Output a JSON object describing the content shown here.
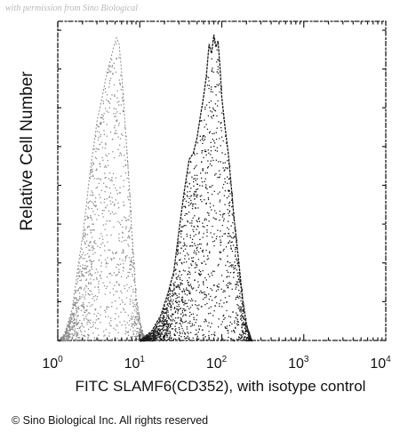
{
  "watermark": "with permission from Sino Biological",
  "copyright": "© Sino Biological Inc. All rights reserved",
  "chart_data": {
    "type": "area",
    "xlabel": "FITC SLAMF6(CD352), with isotype control",
    "ylabel": "Relative Cell Number",
    "xscale": "log",
    "xlim": [
      1,
      10000
    ],
    "ylim": [
      0,
      1
    ],
    "grid": false,
    "x_tick_labels": [
      {
        "value": 1,
        "base": "10",
        "exp": "0"
      },
      {
        "value": 10,
        "base": "10",
        "exp": "1"
      },
      {
        "value": 100,
        "base": "10",
        "exp": "2"
      },
      {
        "value": 1000,
        "base": "10",
        "exp": "3"
      },
      {
        "value": 10000,
        "base": "10",
        "exp": "4"
      }
    ],
    "series": [
      {
        "color": "#8a8a8a",
        "x": [
          1,
          1.2,
          1.5,
          1.8,
          2,
          2.2,
          2.5,
          2.8,
          3,
          3.3,
          3.6,
          4,
          4.4,
          4.8,
          5.2,
          5.6,
          6,
          6.5,
          7,
          7.5,
          8,
          8.5,
          9,
          10,
          11,
          12,
          14
        ],
        "y": [
          0.0,
          0.02,
          0.1,
          0.25,
          0.33,
          0.42,
          0.55,
          0.64,
          0.7,
          0.75,
          0.8,
          0.86,
          0.9,
          0.94,
          0.97,
          0.95,
          0.86,
          0.72,
          0.6,
          0.48,
          0.35,
          0.24,
          0.14,
          0.06,
          0.02,
          0.01,
          0.0
        ]
      },
      {
        "color": "#1a1a1a",
        "x": [
          10,
          14,
          18,
          22,
          26,
          30,
          35,
          40,
          45,
          50,
          55,
          60,
          65,
          70,
          75,
          80,
          85,
          90,
          95,
          100,
          110,
          120,
          130,
          140,
          160,
          180,
          200,
          230
        ],
        "y": [
          0.0,
          0.03,
          0.08,
          0.15,
          0.22,
          0.35,
          0.48,
          0.58,
          0.6,
          0.65,
          0.72,
          0.78,
          0.85,
          0.95,
          0.92,
          0.98,
          0.94,
          0.96,
          0.88,
          0.78,
          0.68,
          0.6,
          0.5,
          0.4,
          0.26,
          0.13,
          0.05,
          0.0
        ]
      }
    ]
  }
}
